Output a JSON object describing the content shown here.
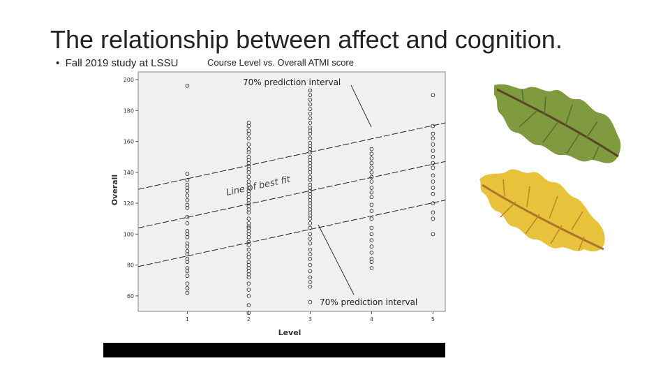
{
  "slide": {
    "title": "The relationship between affect and cognition.",
    "bullet": "Fall 2019 study at LSSU"
  },
  "chart_data": {
    "type": "scatter",
    "title": "Course Level vs. Overall ATMI score",
    "xlabel": "Level",
    "ylabel": "Overall",
    "x_ticks": [
      1,
      2,
      3,
      4,
      5
    ],
    "y_ticks": [
      60,
      80,
      100,
      120,
      140,
      160,
      180,
      200
    ],
    "ylim": [
      50,
      205
    ],
    "xlim": [
      0.2,
      5.2
    ],
    "grid": false,
    "series": [
      {
        "x": 1,
        "y": [
          196,
          139,
          135,
          132,
          130,
          128,
          125,
          122,
          119,
          117,
          111,
          107,
          102,
          100,
          98,
          94,
          92,
          89,
          87,
          84,
          82,
          78,
          76,
          73,
          68,
          65,
          62
        ]
      },
      {
        "x": 2,
        "y": [
          172,
          170,
          167,
          165,
          162,
          158,
          155,
          153,
          150,
          148,
          146,
          144,
          142,
          140,
          137,
          134,
          132,
          130,
          128,
          126,
          124,
          122,
          120,
          118,
          116,
          114,
          110,
          107,
          105,
          104,
          102,
          100,
          98,
          95,
          93,
          90,
          87,
          85,
          82,
          80,
          78,
          76,
          74,
          72,
          68,
          64,
          60,
          54,
          49
        ]
      },
      {
        "x": 3,
        "y": [
          193,
          190,
          187,
          184,
          181,
          178,
          175,
          172,
          169,
          167,
          165,
          162,
          159,
          157,
          155,
          153,
          150,
          148,
          146,
          144,
          142,
          140,
          137,
          135,
          132,
          130,
          128,
          126,
          124,
          122,
          120,
          118,
          116,
          114,
          112,
          110,
          107,
          104,
          100,
          97,
          94,
          90,
          87,
          84,
          80,
          76,
          72,
          69,
          66,
          56
        ]
      },
      {
        "x": 4,
        "y": [
          155,
          152,
          149,
          146,
          143,
          140,
          137,
          134,
          130,
          127,
          124,
          119,
          115,
          110,
          104,
          100,
          96,
          92,
          88,
          84,
          82,
          78
        ]
      },
      {
        "x": 5,
        "y": [
          190,
          170,
          165,
          162,
          158,
          154,
          150,
          146,
          143,
          138,
          134,
          130,
          126,
          120,
          114,
          110,
          100
        ]
      }
    ],
    "lines": [
      {
        "name": "upper",
        "y_at_xmin": 129,
        "y_at_xmax": 172
      },
      {
        "name": "fit",
        "y_at_xmin": 104,
        "y_at_xmax": 147
      },
      {
        "name": "lower",
        "y_at_xmin": 79,
        "y_at_xmax": 122
      }
    ],
    "annotations": [
      {
        "text": "70% prediction interval",
        "position": "top"
      },
      {
        "text": "Line of best fit",
        "position": "center-left"
      },
      {
        "text": "70% prediction interval",
        "position": "bottom"
      }
    ]
  }
}
